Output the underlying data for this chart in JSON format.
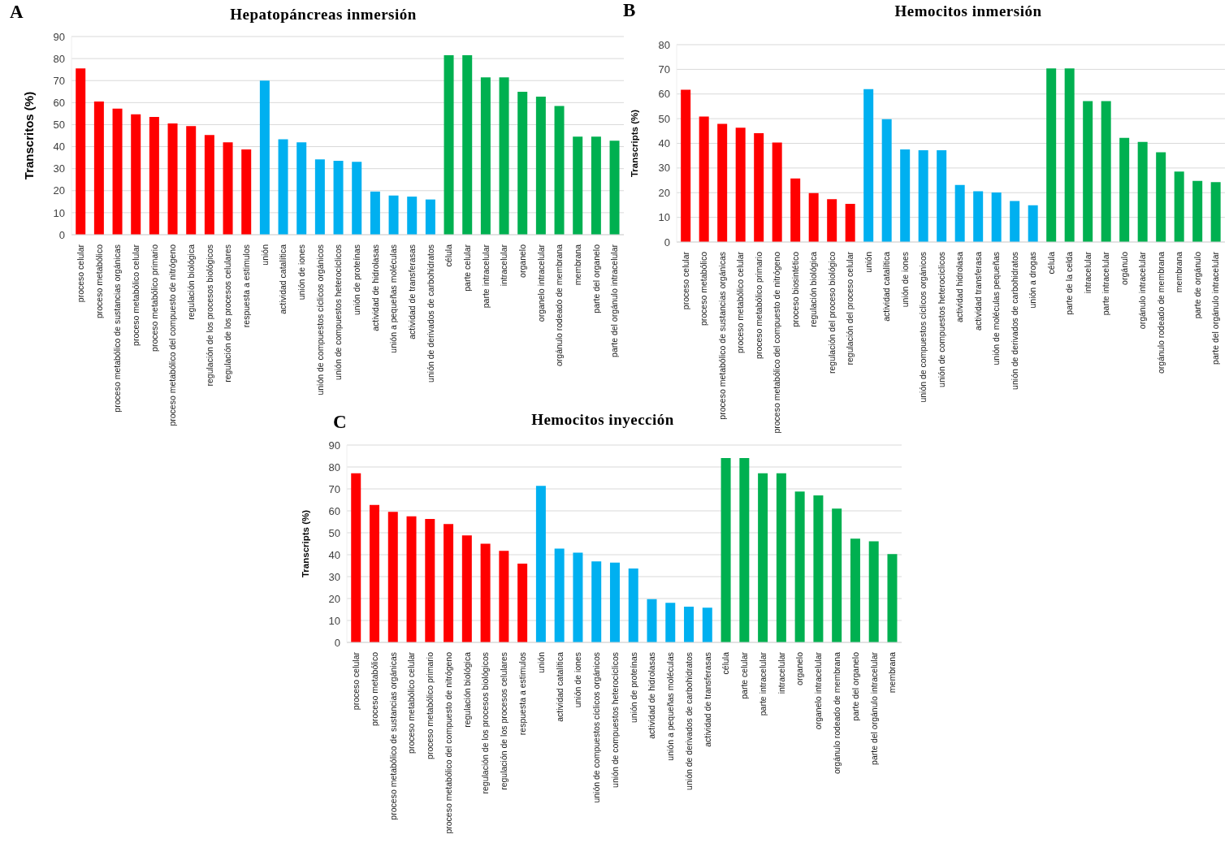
{
  "chart_data": [
    {
      "type": "bar",
      "title": "Hepatopáncreas inmersión",
      "ylabel": "Transcritos (%)",
      "annotations": [
        "A"
      ],
      "categories": [
        "proceso celular",
        "proceso metabólico",
        "proceso metabólico de sustancias orgánicas",
        "proceso metabólico celular",
        "proceso metabólico primario",
        "proceso metabólico del compuesto de nitrógeno",
        "regulación biológica",
        "regulación de los procesos biológicos",
        "regulación de los procesos celulares",
        "respuesta a estimulos",
        "unión",
        "actividad catalítica",
        "unión de iones",
        "unión de compuestos cíclicos orgánicos",
        "unión de compuestos heterocíclicos",
        "unión de proteínas",
        "actividad de hidrolasas",
        "unión a pequeñas moléculas",
        "actividad de transferasas",
        "unión de derivados de carbohidratos",
        "célula",
        "parte celular",
        "parte intracelular",
        "intracelular",
        "organelo",
        "organelo intracelular",
        "orgánulo rodeado de membrana",
        "membrana",
        "parte del organelo",
        "parte del orgánulo intracelular"
      ],
      "values": [
        75.5,
        60.5,
        57.3,
        54.7,
        53.5,
        50.5,
        49.3,
        45.3,
        42,
        38.7,
        70,
        43.3,
        42,
        34.2,
        33.6,
        33.1,
        19.6,
        17.8,
        17.3,
        16,
        81.5,
        81.5,
        71.5,
        71.5,
        64.9,
        62.7,
        58.5,
        44.5,
        44.5,
        42.7
      ],
      "colors": [
        "#ff0000",
        "#ff0000",
        "#ff0000",
        "#ff0000",
        "#ff0000",
        "#ff0000",
        "#ff0000",
        "#ff0000",
        "#ff0000",
        "#ff0000",
        "#00b0f0",
        "#00b0f0",
        "#00b0f0",
        "#00b0f0",
        "#00b0f0",
        "#00b0f0",
        "#00b0f0",
        "#00b0f0",
        "#00b0f0",
        "#00b0f0",
        "#00b050",
        "#00b050",
        "#00b050",
        "#00b050",
        "#00b050",
        "#00b050",
        "#00b050",
        "#00b050",
        "#00b050",
        "#00b050"
      ],
      "ylim": [
        0,
        90
      ],
      "yticks": [
        0,
        10,
        20,
        30,
        40,
        50,
        60,
        70,
        80,
        90
      ],
      "grid": "y"
    },
    {
      "type": "bar",
      "title": "Hemocitos inmersión",
      "ylabel": "Transcripts (%)",
      "annotations": [
        "B"
      ],
      "categories": [
        "proceso celular",
        "proceso metabólico",
        "proceso metabólico de sustancias orgánicas",
        "proceso metabólico celular",
        "proceso metabólico primario",
        "proceso metabólico del compuesto de nitrógeno",
        "proceso biosintético",
        "regulación biológica",
        "regulación del proceso biológico",
        "regulación del proceso celular",
        "unión",
        "actividad catalítica",
        "unión de iones",
        "unión de compuestos cíclicos orgánicos",
        "unión de compuestos heterocíclicos",
        "actividad hidrolasa",
        "actividad transferasa",
        "unión de moléculas pequeñas",
        "unión de derivados de carbohidratos",
        "unión a drogas",
        "célula",
        "parte de la celda",
        "intracelular",
        "parte intracelular",
        "orgánulo",
        "orgánulo intracelular",
        "orgánulo rodeado de membrana",
        "membrana",
        "parte de orgánulo",
        "parte del orgánulo intracelular"
      ],
      "values": [
        61.7,
        50.9,
        47.9,
        46.3,
        44.1,
        40.3,
        25.8,
        19.8,
        17.4,
        15.5,
        62,
        49.8,
        37.5,
        37.2,
        37.2,
        23.1,
        20.6,
        20.1,
        16.6,
        14.9,
        70.4,
        70.4,
        57.1,
        57.1,
        42.2,
        40.6,
        36.4,
        28.6,
        24.8,
        24.3
      ],
      "colors": [
        "#ff0000",
        "#ff0000",
        "#ff0000",
        "#ff0000",
        "#ff0000",
        "#ff0000",
        "#ff0000",
        "#ff0000",
        "#ff0000",
        "#ff0000",
        "#00b0f0",
        "#00b0f0",
        "#00b0f0",
        "#00b0f0",
        "#00b0f0",
        "#00b0f0",
        "#00b0f0",
        "#00b0f0",
        "#00b0f0",
        "#00b0f0",
        "#00b050",
        "#00b050",
        "#00b050",
        "#00b050",
        "#00b050",
        "#00b050",
        "#00b050",
        "#00b050",
        "#00b050",
        "#00b050"
      ],
      "ylim": [
        0,
        80
      ],
      "yticks": [
        0,
        10,
        20,
        30,
        40,
        50,
        60,
        70,
        80
      ],
      "grid": "y"
    },
    {
      "type": "bar",
      "title": "Hemocitos inyección",
      "ylabel": "Transcripts (%)",
      "annotations": [
        "C"
      ],
      "categories": [
        "proceso celular",
        "proceso metabólico",
        "proceso metabólico de sustancias orgánicas",
        "proceso metabólico celular",
        "proceso metabólico primario",
        "proceso metabólico del compuesto de nitrógeno",
        "regulación biológica",
        "regulación de los procesos biológicos",
        "regulación de los procesos celulares",
        "respuesta a estimulos",
        "unión",
        "actividad catalítica",
        "unión de iones",
        "unión de compuestos cíclicos orgánicos",
        "unión de compuestos heterocíclicos",
        "unión de proteínas",
        "actividad de hidrolasas",
        "unión a pequeñas moléculas",
        "unión de derivados de carbohidratos",
        "actividad de transferasas",
        "célula",
        "parte celular",
        "parte intracelular",
        "intracelular",
        "organelo",
        "organelo intracelular",
        "orgánulo rodeado de membrana",
        "parte del organelo",
        "parte del orgánulo intracelular",
        "membrana"
      ],
      "values": [
        77.1,
        62.7,
        59.5,
        57.5,
        56.3,
        54,
        48.8,
        45,
        41.8,
        35.9,
        71.4,
        42.8,
        40.9,
        36.9,
        36.4,
        33.7,
        19.7,
        18.1,
        16.3,
        15.8,
        84.1,
        84.1,
        77.1,
        77.1,
        68.8,
        67,
        61,
        47.3,
        46.1,
        40.3
      ],
      "colors": [
        "#ff0000",
        "#ff0000",
        "#ff0000",
        "#ff0000",
        "#ff0000",
        "#ff0000",
        "#ff0000",
        "#ff0000",
        "#ff0000",
        "#ff0000",
        "#00b0f0",
        "#00b0f0",
        "#00b0f0",
        "#00b0f0",
        "#00b0f0",
        "#00b0f0",
        "#00b0f0",
        "#00b0f0",
        "#00b0f0",
        "#00b0f0",
        "#00b050",
        "#00b050",
        "#00b050",
        "#00b050",
        "#00b050",
        "#00b050",
        "#00b050",
        "#00b050",
        "#00b050",
        "#00b050"
      ],
      "ylim": [
        0,
        90
      ],
      "yticks": [
        0,
        10,
        20,
        30,
        40,
        50,
        60,
        70,
        80,
        90
      ],
      "grid": "y"
    }
  ]
}
